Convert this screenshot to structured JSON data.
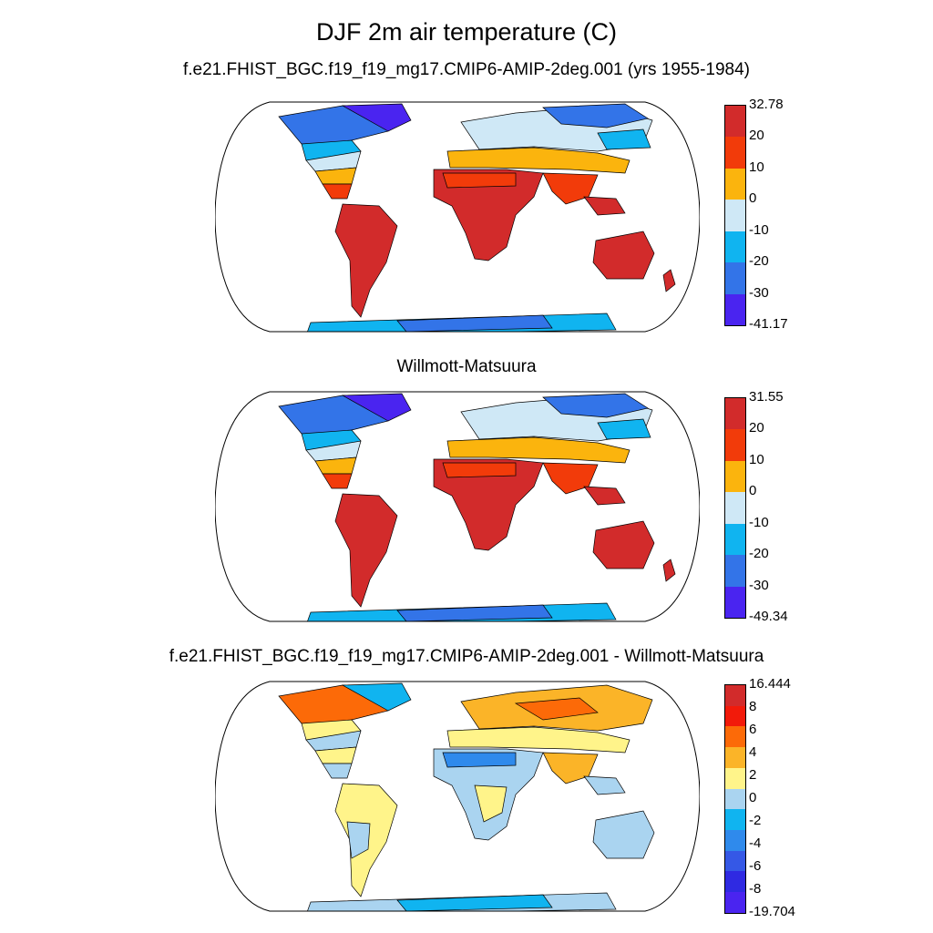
{
  "figure": {
    "title": "DJF 2m air temperature (C)"
  },
  "panels": [
    {
      "title": "f.e21.FHIST_BGC.f19_f19_mg17.CMIP6-AMIP-2deg.001 (yrs 1955-1984)",
      "colorbar": {
        "labels": [
          "32.78",
          "20",
          "10",
          "0",
          "-10",
          "-20",
          "-30",
          "-41.17"
        ],
        "colors": [
          "#d22b2b",
          "#f23b0a",
          "#fbb40d",
          "#cfe8f6",
          "#10b4f0",
          "#3374e8",
          "#4a24f0"
        ]
      }
    },
    {
      "title": "Willmott-Matsuura",
      "colorbar": {
        "labels": [
          "31.55",
          "20",
          "10",
          "0",
          "-10",
          "-20",
          "-30",
          "-49.34"
        ],
        "colors": [
          "#d22b2b",
          "#f23b0a",
          "#fbb40d",
          "#cfe8f6",
          "#10b4f0",
          "#3374e8",
          "#4a24f0"
        ]
      }
    },
    {
      "title": "f.e21.FHIST_BGC.f19_f19_mg17.CMIP6-AMIP-2deg.001 - Willmott-Matsuura",
      "colorbar": {
        "labels": [
          "16.444",
          "8",
          "6",
          "4",
          "2",
          "0",
          "-2",
          "-4",
          "-6",
          "-8",
          "-19.704"
        ],
        "colors": [
          "#d22b2b",
          "#f21a0a",
          "#fc6a08",
          "#fbb428",
          "#fff48a",
          "#aad4f0",
          "#10b4f0",
          "#2f8aec",
          "#3558e6",
          "#2f2ae2",
          "#4a24f0"
        ]
      }
    }
  ]
}
